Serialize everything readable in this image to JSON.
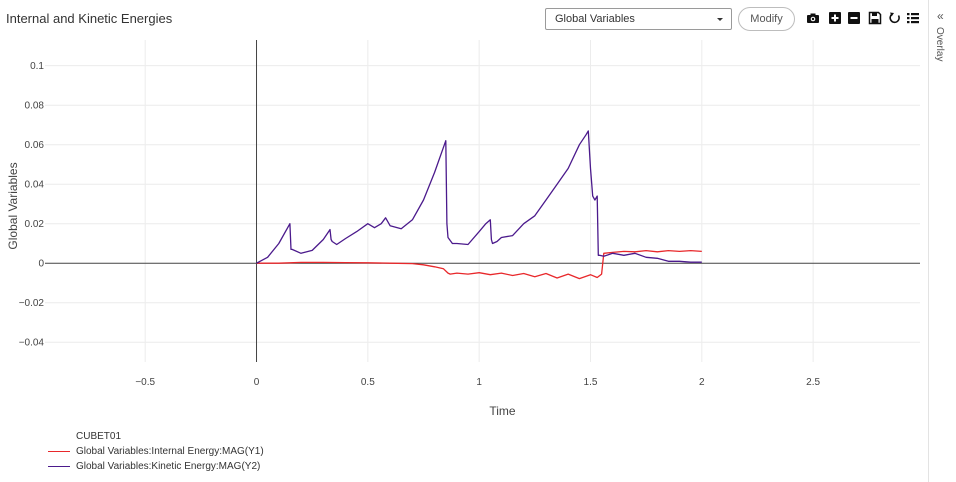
{
  "header": {
    "title": "Internal and Kinetic Energies",
    "select_value": "Global Variables",
    "modify_label": "Modify"
  },
  "toolbar": {
    "icons": [
      "camera-icon",
      "zoom-in-icon",
      "zoom-out-icon",
      "save-icon",
      "reset-icon",
      "list-icon"
    ]
  },
  "overlay": {
    "label": "Overlay"
  },
  "colors": {
    "internal": "#e8282b",
    "kinetic": "#4b1a8c",
    "grid": "#ececec"
  },
  "chart_data": {
    "type": "line",
    "xlabel": "Time",
    "ylabel": "Global Variables",
    "xlim": [
      -0.95,
      2.98
    ],
    "ylim": [
      -0.05,
      0.113
    ],
    "x_ticks": [
      -0.5,
      0,
      0.5,
      1,
      1.5,
      2,
      2.5
    ],
    "x_tick_labels": [
      "−0.5",
      "0",
      "0.5",
      "1",
      "1.5",
      "2",
      "2.5"
    ],
    "y_ticks": [
      -0.04,
      -0.02,
      0,
      0.02,
      0.04,
      0.06,
      0.08,
      0.1
    ],
    "y_tick_labels": [
      "−0.04",
      "−0.02",
      "0",
      "0.02",
      "0.04",
      "0.06",
      "0.08",
      "0.1"
    ],
    "grid": true,
    "legend_title": "CUBET01",
    "legend_position": "bottom-left",
    "series": [
      {
        "name": "Global Variables:Internal Energy:MAG(Y1)",
        "x": [
          0,
          0.05,
          0.1,
          0.15,
          0.2,
          0.3,
          0.4,
          0.5,
          0.6,
          0.7,
          0.75,
          0.8,
          0.84,
          0.86,
          0.87,
          0.9,
          0.95,
          1.0,
          1.05,
          1.1,
          1.15,
          1.2,
          1.25,
          1.3,
          1.35,
          1.4,
          1.45,
          1.5,
          1.53,
          1.55,
          1.56,
          1.6,
          1.65,
          1.7,
          1.75,
          1.8,
          1.85,
          1.9,
          1.95,
          2.0
        ],
        "y": [
          0,
          0,
          0,
          0.0002,
          0.0004,
          0.0004,
          0.0003,
          0.0002,
          0,
          -0.0002,
          -0.0008,
          -0.0018,
          -0.0028,
          -0.005,
          -0.0055,
          -0.005,
          -0.0055,
          -0.0048,
          -0.0058,
          -0.005,
          -0.0062,
          -0.0052,
          -0.0068,
          -0.0052,
          -0.0075,
          -0.0055,
          -0.0078,
          -0.0058,
          -0.0072,
          -0.0055,
          0.005,
          0.0055,
          0.006,
          0.0058,
          0.0064,
          0.0058,
          0.0064,
          0.006,
          0.0064,
          0.006
        ]
      },
      {
        "name": "Global Variables:Kinetic Energy:MAG(Y2)",
        "x": [
          0,
          0.05,
          0.1,
          0.15,
          0.155,
          0.16,
          0.2,
          0.25,
          0.3,
          0.33,
          0.335,
          0.34,
          0.36,
          0.4,
          0.45,
          0.5,
          0.53,
          0.56,
          0.58,
          0.6,
          0.65,
          0.7,
          0.75,
          0.8,
          0.85,
          0.855,
          0.86,
          0.88,
          0.9,
          0.95,
          1.0,
          1.03,
          1.05,
          1.055,
          1.06,
          1.08,
          1.1,
          1.15,
          1.2,
          1.25,
          1.3,
          1.35,
          1.4,
          1.45,
          1.48,
          1.49,
          1.5,
          1.51,
          1.52,
          1.53,
          1.535,
          1.54,
          1.56,
          1.6,
          1.65,
          1.7,
          1.75,
          1.8,
          1.85,
          1.9,
          1.95,
          2.0
        ],
        "y": [
          0,
          0.003,
          0.01,
          0.02,
          0.007,
          0.007,
          0.005,
          0.0065,
          0.012,
          0.017,
          0.012,
          0.011,
          0.0095,
          0.0125,
          0.016,
          0.02,
          0.018,
          0.02,
          0.023,
          0.019,
          0.0175,
          0.022,
          0.032,
          0.046,
          0.062,
          0.02,
          0.013,
          0.01,
          0.01,
          0.0095,
          0.016,
          0.02,
          0.022,
          0.012,
          0.01,
          0.011,
          0.013,
          0.014,
          0.02,
          0.024,
          0.032,
          0.04,
          0.048,
          0.06,
          0.065,
          0.067,
          0.048,
          0.034,
          0.032,
          0.034,
          0.004,
          0.004,
          0.0035,
          0.005,
          0.004,
          0.005,
          0.003,
          0.0025,
          0.001,
          0.001,
          0.0005,
          0.0005
        ]
      }
    ]
  }
}
